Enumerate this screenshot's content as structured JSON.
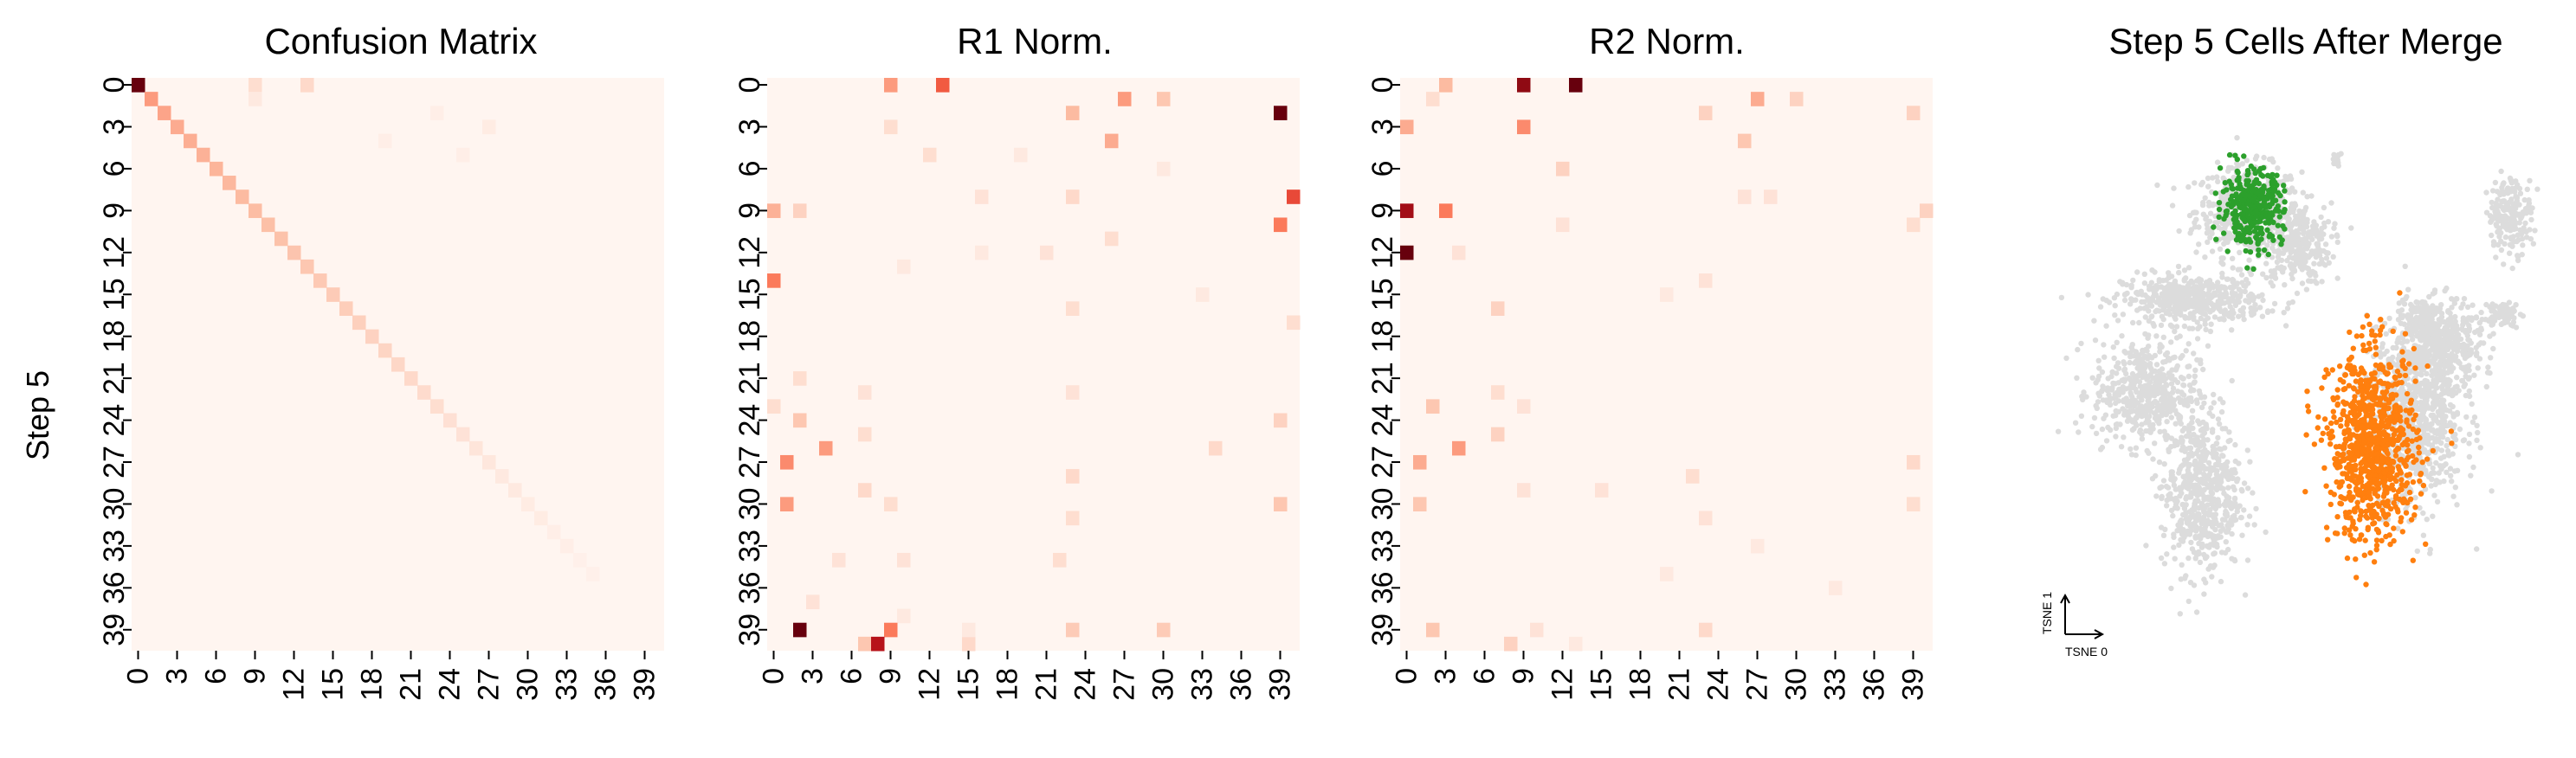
{
  "figure": {
    "ylabel": "Step 5",
    "tick_labels": [
      "0",
      "3",
      "6",
      "9",
      "12",
      "15",
      "18",
      "21",
      "24",
      "27",
      "30",
      "33",
      "36",
      "39"
    ]
  },
  "chart_data": [
    {
      "type": "heatmap",
      "title": "Confusion Matrix",
      "n": 41,
      "colormap": [
        "#fff5f0",
        "#fcbba1",
        "#fb6a4a",
        "#cb181d",
        "#67000d"
      ],
      "cells": [
        [
          0,
          0,
          1.0
        ],
        [
          1,
          1,
          0.35
        ],
        [
          2,
          2,
          0.32
        ],
        [
          3,
          3,
          0.3
        ],
        [
          4,
          4,
          0.29
        ],
        [
          5,
          5,
          0.28
        ],
        [
          6,
          6,
          0.27
        ],
        [
          7,
          7,
          0.26
        ],
        [
          8,
          8,
          0.25
        ],
        [
          9,
          9,
          0.24
        ],
        [
          10,
          10,
          0.23
        ],
        [
          11,
          11,
          0.22
        ],
        [
          12,
          12,
          0.21
        ],
        [
          13,
          13,
          0.2
        ],
        [
          14,
          14,
          0.19
        ],
        [
          15,
          15,
          0.18
        ],
        [
          16,
          16,
          0.17
        ],
        [
          17,
          17,
          0.16
        ],
        [
          18,
          18,
          0.15
        ],
        [
          19,
          19,
          0.14
        ],
        [
          20,
          20,
          0.13
        ],
        [
          21,
          21,
          0.12
        ],
        [
          22,
          22,
          0.11
        ],
        [
          23,
          23,
          0.1
        ],
        [
          24,
          24,
          0.09
        ],
        [
          25,
          25,
          0.08
        ],
        [
          26,
          26,
          0.07
        ],
        [
          27,
          27,
          0.06
        ],
        [
          28,
          28,
          0.05
        ],
        [
          29,
          29,
          0.05
        ],
        [
          30,
          30,
          0.04
        ],
        [
          31,
          31,
          0.04
        ],
        [
          32,
          32,
          0.03
        ],
        [
          33,
          33,
          0.03
        ],
        [
          34,
          34,
          0.02
        ],
        [
          35,
          35,
          0.02
        ],
        [
          0,
          9,
          0.1
        ],
        [
          0,
          13,
          0.12
        ],
        [
          1,
          9,
          0.05
        ],
        [
          3,
          27,
          0.04
        ],
        [
          5,
          25,
          0.03
        ],
        [
          2,
          23,
          0.03
        ],
        [
          4,
          19,
          0.03
        ]
      ]
    },
    {
      "type": "heatmap",
      "title": "R1 Norm.",
      "n": 41,
      "colormap": [
        "#fff5f0",
        "#fcbba1",
        "#fb6a4a",
        "#cb181d",
        "#67000d"
      ],
      "cells": [
        [
          0,
          9,
          0.35
        ],
        [
          0,
          13,
          0.55
        ],
        [
          1,
          27,
          0.35
        ],
        [
          1,
          30,
          0.2
        ],
        [
          2,
          23,
          0.25
        ],
        [
          2,
          39,
          1.0
        ],
        [
          3,
          9,
          0.1
        ],
        [
          4,
          26,
          0.3
        ],
        [
          5,
          12,
          0.1
        ],
        [
          8,
          16,
          0.08
        ],
        [
          8,
          23,
          0.12
        ],
        [
          8,
          40,
          0.6
        ],
        [
          9,
          0,
          0.28
        ],
        [
          9,
          2,
          0.15
        ],
        [
          10,
          39,
          0.45
        ],
        [
          11,
          26,
          0.1
        ],
        [
          12,
          21,
          0.08
        ],
        [
          14,
          0,
          0.45
        ],
        [
          16,
          23,
          0.1
        ],
        [
          17,
          40,
          0.1
        ],
        [
          21,
          2,
          0.1
        ],
        [
          22,
          7,
          0.08
        ],
        [
          22,
          23,
          0.08
        ],
        [
          23,
          0,
          0.1
        ],
        [
          24,
          2,
          0.2
        ],
        [
          24,
          39,
          0.15
        ],
        [
          25,
          7,
          0.1
        ],
        [
          26,
          4,
          0.35
        ],
        [
          26,
          34,
          0.12
        ],
        [
          27,
          1,
          0.4
        ],
        [
          28,
          23,
          0.12
        ],
        [
          29,
          7,
          0.12
        ],
        [
          30,
          1,
          0.35
        ],
        [
          30,
          9,
          0.1
        ],
        [
          30,
          39,
          0.2
        ],
        [
          31,
          23,
          0.1
        ],
        [
          34,
          5,
          0.08
        ],
        [
          34,
          10,
          0.08
        ],
        [
          34,
          22,
          0.1
        ],
        [
          37,
          3,
          0.08
        ],
        [
          38,
          10,
          0.05
        ],
        [
          39,
          2,
          1.0
        ],
        [
          39,
          9,
          0.45
        ],
        [
          39,
          23,
          0.18
        ],
        [
          39,
          30,
          0.18
        ],
        [
          40,
          7,
          0.2
        ],
        [
          40,
          8,
          0.8
        ],
        [
          40,
          15,
          0.12
        ],
        [
          39,
          15,
          0.05
        ],
        [
          5,
          19,
          0.05
        ],
        [
          12,
          16,
          0.05
        ],
        [
          15,
          33,
          0.05
        ],
        [
          13,
          10,
          0.05
        ],
        [
          6,
          30,
          0.05
        ]
      ]
    },
    {
      "type": "heatmap",
      "title": "R2 Norm.",
      "n": 41,
      "colormap": [
        "#fff5f0",
        "#fcbba1",
        "#fb6a4a",
        "#cb181d",
        "#67000d"
      ],
      "cells": [
        [
          0,
          3,
          0.25
        ],
        [
          0,
          9,
          0.9
        ],
        [
          0,
          13,
          1.0
        ],
        [
          1,
          2,
          0.1
        ],
        [
          1,
          27,
          0.3
        ],
        [
          1,
          30,
          0.15
        ],
        [
          2,
          23,
          0.15
        ],
        [
          2,
          39,
          0.15
        ],
        [
          3,
          0,
          0.3
        ],
        [
          3,
          9,
          0.4
        ],
        [
          4,
          26,
          0.2
        ],
        [
          6,
          12,
          0.15
        ],
        [
          8,
          26,
          0.08
        ],
        [
          8,
          28,
          0.08
        ],
        [
          9,
          0,
          0.85
        ],
        [
          9,
          3,
          0.45
        ],
        [
          9,
          40,
          0.15
        ],
        [
          10,
          12,
          0.08
        ],
        [
          10,
          39,
          0.1
        ],
        [
          12,
          0,
          1.0
        ],
        [
          12,
          4,
          0.08
        ],
        [
          14,
          23,
          0.08
        ],
        [
          16,
          7,
          0.15
        ],
        [
          22,
          7,
          0.1
        ],
        [
          23,
          2,
          0.2
        ],
        [
          23,
          9,
          0.08
        ],
        [
          25,
          7,
          0.15
        ],
        [
          26,
          4,
          0.35
        ],
        [
          27,
          1,
          0.3
        ],
        [
          27,
          39,
          0.12
        ],
        [
          28,
          22,
          0.1
        ],
        [
          29,
          9,
          0.08
        ],
        [
          29,
          15,
          0.08
        ],
        [
          30,
          1,
          0.2
        ],
        [
          30,
          39,
          0.1
        ],
        [
          31,
          23,
          0.08
        ],
        [
          35,
          20,
          0.05
        ],
        [
          39,
          2,
          0.2
        ],
        [
          39,
          10,
          0.08
        ],
        [
          39,
          23,
          0.12
        ],
        [
          40,
          8,
          0.15
        ],
        [
          40,
          13,
          0.05
        ],
        [
          36,
          33,
          0.05
        ],
        [
          15,
          20,
          0.05
        ],
        [
          33,
          27,
          0.05
        ]
      ]
    },
    {
      "type": "scatter",
      "title": "Step 5 Cells After Merge",
      "xlabel": "TSNE 0",
      "ylabel": "TSNE 1",
      "background_color": "#dcdcdc",
      "series": [
        {
          "color": "#2ca02c",
          "center": [
            0.5,
            7.2
          ],
          "spread": [
            0.7,
            0.9
          ],
          "count": 350
        },
        {
          "color": "#ff7f0e",
          "center": [
            3.55,
            0.7
          ],
          "spread": [
            1.0,
            2.3
          ],
          "count": 900
        }
      ],
      "background_clusters": [
        {
          "center": [
            0.4,
            7.1
          ],
          "spread": [
            1.2,
            1.1
          ],
          "count": 500
        },
        {
          "center": [
            1.6,
            6.2
          ],
          "spread": [
            0.8,
            1.0
          ],
          "count": 300
        },
        {
          "center": [
            -1.0,
            4.7
          ],
          "spread": [
            1.6,
            0.6
          ],
          "count": 500
        },
        {
          "center": [
            -2.2,
            2.2
          ],
          "spread": [
            1.2,
            1.3
          ],
          "count": 500
        },
        {
          "center": [
            -0.8,
            -0.5
          ],
          "spread": [
            0.9,
            2.0
          ],
          "count": 600
        },
        {
          "center": [
            4.6,
            1.6
          ],
          "spread": [
            1.1,
            2.2
          ],
          "count": 900
        },
        {
          "center": [
            5.3,
            3.5
          ],
          "spread": [
            0.9,
            1.0
          ],
          "count": 400
        },
        {
          "center": [
            7.0,
            7.0
          ],
          "spread": [
            0.5,
            0.9
          ],
          "count": 200
        },
        {
          "center": [
            6.8,
            4.3
          ],
          "spread": [
            0.4,
            0.3
          ],
          "count": 80
        },
        {
          "center": [
            4.7,
            4.3
          ],
          "spread": [
            0.4,
            0.4
          ],
          "count": 80
        },
        {
          "center": [
            2.6,
            8.5
          ],
          "spread": [
            0.1,
            0.2
          ],
          "count": 15
        }
      ],
      "xlim": [
        -4,
        8
      ],
      "ylim": [
        -5,
        10
      ]
    }
  ]
}
